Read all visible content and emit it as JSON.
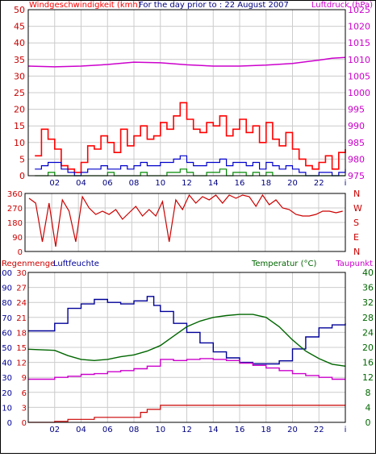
{
  "colors": {
    "background": "#ffffff",
    "grid": "#cccccc",
    "frame": "#000000",
    "wind": "#ff0000",
    "gust": "#0000cc",
    "wind_mean": "#008800",
    "pressure": "#cc00cc",
    "direction": "#cc0000",
    "humidity": "#000099",
    "temperature": "#006600",
    "dewpoint": "#cc00cc",
    "rain": "#cc0000",
    "time_labels": "#000080"
  },
  "chart_data": [
    {
      "type": "line",
      "id": "wind-pressure",
      "title": "For the day prior to : 22 August 2007",
      "left_axis_label": "Windgeschwindigkeit (kmh)",
      "right_axis_label": "Luftdruck (hPa)",
      "x_tick_labels": [
        "02",
        "04",
        "06",
        "08",
        "10",
        "12",
        "14",
        "16",
        "18",
        "20",
        "22",
        "i"
      ],
      "ylim_left": [
        0,
        50
      ],
      "yticks_left": [
        "0",
        "5",
        "10",
        "15",
        "20",
        "25",
        "30",
        "35",
        "40",
        "45",
        "50"
      ],
      "ylim_right": [
        975,
        1025
      ],
      "yticks_right": [
        "975",
        "980",
        "985",
        "990",
        "995",
        "1000",
        "1005",
        "1010",
        "1015",
        "1020",
        "1025"
      ],
      "series": [
        {
          "key": "wind",
          "axis": "left",
          "x": [
            0.5,
            1.0,
            1.5,
            2.0,
            2.5,
            3.0,
            3.5,
            4.0,
            4.5,
            5.0,
            5.5,
            6.0,
            6.5,
            7.0,
            7.5,
            8.0,
            8.5,
            9.0,
            9.5,
            10.0,
            10.5,
            11.0,
            11.5,
            12.0,
            12.5,
            13.0,
            13.5,
            14.0,
            14.5,
            15.0,
            15.5,
            16.0,
            16.5,
            17.0,
            17.5,
            18.0,
            18.5,
            19.0,
            19.5,
            20.0,
            20.5,
            21.0,
            21.5,
            22.0,
            22.5,
            23.0,
            23.5,
            24.0
          ],
          "values": [
            6,
            14,
            11,
            8,
            3,
            2,
            1,
            4,
            9,
            8,
            12,
            10,
            7,
            14,
            9,
            12,
            15,
            11,
            12,
            16,
            14,
            18,
            22,
            17,
            14,
            13,
            16,
            15,
            18,
            12,
            14,
            17,
            13,
            15,
            10,
            16,
            11,
            9,
            13,
            8,
            5,
            3,
            2,
            4,
            6,
            2,
            7,
            8
          ]
        },
        {
          "key": "gust",
          "axis": "left",
          "x": [
            0.5,
            1.0,
            1.5,
            2.0,
            2.5,
            3.0,
            3.5,
            4.0,
            4.5,
            5.0,
            5.5,
            6.0,
            6.5,
            7.0,
            7.5,
            8.0,
            8.5,
            9.0,
            9.5,
            10.0,
            10.5,
            11.0,
            11.5,
            12.0,
            12.5,
            13.0,
            13.5,
            14.0,
            14.5,
            15.0,
            15.5,
            16.0,
            16.5,
            17.0,
            17.5,
            18.0,
            18.5,
            19.0,
            19.5,
            20.0,
            20.5,
            21.0,
            21.5,
            22.0,
            22.5,
            23.0,
            23.5,
            24.0
          ],
          "values": [
            2,
            3,
            4,
            4,
            2,
            1,
            0,
            1,
            2,
            2,
            3,
            2,
            2,
            3,
            2,
            3,
            4,
            3,
            3,
            4,
            4,
            5,
            6,
            4,
            3,
            3,
            4,
            4,
            5,
            3,
            4,
            4,
            3,
            4,
            2,
            4,
            3,
            2,
            3,
            2,
            1,
            0,
            0,
            1,
            1,
            0,
            1,
            2
          ]
        },
        {
          "key": "wind_mean",
          "axis": "left",
          "x": [
            0.5,
            1.0,
            1.5,
            2.0,
            2.5,
            3.0,
            3.5,
            4.0,
            4.5,
            5.0,
            5.5,
            6.0,
            6.5,
            7.0,
            7.5,
            8.0,
            8.5,
            9.0,
            9.5,
            10.0,
            10.5,
            11.0,
            11.5,
            12.0,
            12.5,
            13.0,
            13.5,
            14.0,
            14.5,
            15.0,
            15.5,
            16.0,
            16.5,
            17.0,
            17.5,
            18.0,
            18.5,
            19.0,
            19.5,
            20.0,
            20.5,
            21.0,
            21.5,
            22.0,
            22.5,
            23.0,
            23.5,
            24.0
          ],
          "values": [
            0,
            0,
            1,
            0,
            0,
            0,
            0,
            0,
            0,
            0,
            0,
            1,
            0,
            0,
            0,
            0,
            1,
            0,
            0,
            0,
            1,
            1,
            2,
            1,
            0,
            0,
            1,
            1,
            2,
            0,
            1,
            1,
            0,
            1,
            0,
            1,
            0,
            0,
            0,
            0,
            0,
            0,
            0,
            0,
            0,
            0,
            0,
            0
          ]
        },
        {
          "key": "pressure",
          "axis": "right",
          "x": [
            0,
            2,
            4,
            6,
            8,
            10,
            12,
            14,
            16,
            18,
            20,
            22,
            23,
            24
          ],
          "values": [
            1008.0,
            1007.8,
            1008.0,
            1008.5,
            1009.2,
            1009.0,
            1008.4,
            1008.0,
            1008.0,
            1008.3,
            1008.8,
            1009.8,
            1010.4,
            1010.6
          ]
        }
      ]
    },
    {
      "type": "line",
      "id": "wind-direction",
      "x_tick_labels": [],
      "ylim_left": [
        0,
        360
      ],
      "yticks_left": [
        "0",
        "90",
        "180",
        "270",
        "360"
      ],
      "yticks_right": [
        "N",
        "E",
        "S",
        "W",
        "N"
      ],
      "series": [
        {
          "key": "direction",
          "axis": "left",
          "x": [
            0.3,
            0.8,
            1.3,
            1.8,
            2.3,
            2.8,
            3.3,
            3.8,
            4.3,
            4.8,
            5.3,
            5.8,
            6.3,
            6.8,
            7.3,
            7.8,
            8.3,
            8.8,
            9.3,
            9.8,
            10.3,
            10.8,
            11.3,
            11.8,
            12.3,
            12.8,
            13.3,
            13.8,
            14.3,
            14.8,
            15.3,
            15.8,
            16.3,
            16.8,
            17.3,
            17.8,
            18.3,
            18.8,
            19.3,
            19.8,
            20.3,
            20.8,
            21.3,
            21.8,
            22.3,
            22.8,
            23.3,
            23.8
          ],
          "values": [
            330,
            300,
            60,
            300,
            30,
            320,
            250,
            60,
            340,
            270,
            230,
            250,
            230,
            260,
            200,
            240,
            280,
            220,
            260,
            220,
            310,
            60,
            320,
            260,
            350,
            300,
            340,
            320,
            350,
            300,
            350,
            330,
            350,
            340,
            280,
            350,
            290,
            320,
            270,
            260,
            230,
            220,
            220,
            230,
            250,
            250,
            240,
            250
          ]
        }
      ]
    },
    {
      "type": "line",
      "id": "humidity-temperature",
      "left_axis_label_1": "Regenmenge",
      "left_axis_label_2": "Luftfeuchte",
      "right_axis_label_1": "Temperatur (°C)",
      "right_axis_label_2": "Taupunkt",
      "x_tick_labels": [
        "02",
        "04",
        "06",
        "08",
        "10",
        "12",
        "14",
        "16",
        "18",
        "20",
        "22",
        "i"
      ],
      "ylim_humidity": [
        0,
        100
      ],
      "yticks_humidity": [
        "0",
        "10",
        "20",
        "30",
        "40",
        "50",
        "60",
        "70",
        "80",
        "90",
        "100"
      ],
      "ylim_rain": [
        0,
        30
      ],
      "yticks_rain": [
        "0",
        "3",
        "6",
        "9",
        "12",
        "15",
        "18",
        "21",
        "24",
        "27",
        "30"
      ],
      "ylim_temperature": [
        0,
        40
      ],
      "yticks_temperature": [
        "0",
        "4",
        "8",
        "12",
        "16",
        "20",
        "24",
        "28",
        "32",
        "36",
        "40"
      ],
      "series": [
        {
          "key": "humidity",
          "axis": "humidity",
          "x": [
            0,
            1.5,
            2,
            3,
            4,
            5,
            6,
            7,
            8,
            9,
            9.5,
            10,
            11,
            12,
            13,
            14,
            15,
            16,
            17,
            18,
            19,
            20,
            21,
            22,
            23,
            24
          ],
          "values": [
            61,
            61,
            66,
            76,
            79,
            82,
            80,
            79,
            81,
            84,
            78,
            74,
            66,
            60,
            53,
            47,
            43,
            40,
            39,
            39,
            41,
            49,
            57,
            63,
            65,
            66
          ]
        },
        {
          "key": "temperature",
          "axis": "temperature",
          "x": [
            0,
            2,
            3,
            4,
            5,
            6,
            7,
            8,
            9,
            10,
            11,
            12,
            13,
            14,
            15,
            16,
            17,
            18,
            19,
            20,
            21,
            22,
            23,
            24
          ],
          "values": [
            19.5,
            19.2,
            17.8,
            16.8,
            16.5,
            16.8,
            17.5,
            18.0,
            19.0,
            20.5,
            23.0,
            25.5,
            27.0,
            28.0,
            28.5,
            28.8,
            28.8,
            28.0,
            25.5,
            22.0,
            19.0,
            17.0,
            15.5,
            15.0
          ]
        },
        {
          "key": "dewpoint",
          "axis": "temperature",
          "x": [
            0,
            1,
            2,
            3,
            4,
            5,
            6,
            7,
            8,
            9,
            10,
            11,
            12,
            13,
            14,
            15,
            16,
            17,
            18,
            19,
            20,
            21,
            22,
            23,
            24
          ],
          "values": [
            11.5,
            11.5,
            12.0,
            12.3,
            12.8,
            13.0,
            13.5,
            13.8,
            14.3,
            15.0,
            16.8,
            16.5,
            16.8,
            17.0,
            16.8,
            16.5,
            15.8,
            15.2,
            14.5,
            13.8,
            13.0,
            12.5,
            12.0,
            11.5,
            11.5
          ]
        },
        {
          "key": "rain",
          "axis": "rain",
          "x": [
            0,
            2,
            3,
            5,
            7,
            8,
            8.5,
            9,
            9.5,
            10,
            12,
            14,
            16,
            18,
            20,
            22,
            24
          ],
          "values": [
            0.0,
            0.2,
            0.6,
            1.0,
            1.0,
            1.0,
            2.0,
            2.6,
            2.6,
            3.4,
            3.4,
            3.4,
            3.4,
            3.4,
            3.4,
            3.4,
            3.4
          ]
        }
      ]
    }
  ]
}
